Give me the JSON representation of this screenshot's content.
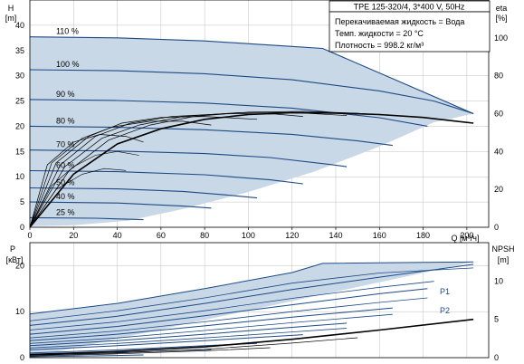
{
  "chart_data": [
    {
      "type": "line",
      "title": "TPE 125-320/4, 3*400 V, 50Hz",
      "info_lines": [
        "Перекачиваемая жидкость = Вода",
        "Темп. жидкости = 20 °C",
        "Плотность = 998.2 кг/м³"
      ],
      "y_label": "H",
      "y_unit": "[m]",
      "y2_label": "eta",
      "y2_unit": "[%]",
      "x_label": "Q [м³/ч]",
      "xlim": [
        0,
        210
      ],
      "ylim": [
        0,
        45
      ],
      "y2lim": [
        0,
        120
      ],
      "x_ticks": [
        0,
        20,
        40,
        60,
        80,
        100,
        120,
        140,
        160,
        180,
        200
      ],
      "y_ticks": [
        0,
        5,
        10,
        15,
        20,
        25,
        30,
        35,
        40
      ],
      "y2_ticks": [
        0,
        20,
        40,
        60,
        80,
        100
      ],
      "grid": true,
      "colors": {
        "curve": "#1c4a86",
        "envelope": "#c9d8e6",
        "efficiency": "#000000",
        "grid": "#bfbfbf"
      },
      "speed_curves": [
        {
          "label": "110 %",
          "points": [
            [
              0,
              37.7
            ],
            [
              40,
              37.5
            ],
            [
              80,
              36.9
            ],
            [
              120,
              35.8
            ],
            [
              134,
              35.4
            ],
            [
              203,
              22.5
            ]
          ]
        },
        {
          "label": "100 %",
          "points": [
            [
              0,
              31.2
            ],
            [
              40,
              31.0
            ],
            [
              80,
              30.4
            ],
            [
              120,
              29.2
            ],
            [
              160,
              27.0
            ],
            [
              185,
              25.0
            ],
            [
              203,
              22.5
            ]
          ]
        },
        {
          "label": "90 %",
          "points": [
            [
              0,
              25.3
            ],
            [
              40,
              25.1
            ],
            [
              80,
              24.6
            ],
            [
              120,
              23.6
            ],
            [
              160,
              21.7
            ],
            [
              182,
              20.0
            ]
          ]
        },
        {
          "label": "80 %",
          "points": [
            [
              0,
              20.0
            ],
            [
              40,
              19.8
            ],
            [
              80,
              19.3
            ],
            [
              120,
              18.4
            ],
            [
              150,
              17.1
            ],
            [
              166,
              16.2
            ]
          ]
        },
        {
          "label": "70 %",
          "points": [
            [
              0,
              15.3
            ],
            [
              40,
              15.1
            ],
            [
              80,
              14.6
            ],
            [
              110,
              13.8
            ],
            [
              138,
              12.4
            ],
            [
              145,
              12.0
            ]
          ]
        },
        {
          "label": "60 %",
          "points": [
            [
              0,
              11.2
            ],
            [
              40,
              11.0
            ],
            [
              80,
              10.4
            ],
            [
              110,
              9.4
            ],
            [
              125,
              8.6
            ]
          ]
        },
        {
          "label": "50 %",
          "points": [
            [
              0,
              7.8
            ],
            [
              40,
              7.6
            ],
            [
              70,
              7.1
            ],
            [
              90,
              6.4
            ],
            [
              104,
              5.8
            ]
          ]
        },
        {
          "label": "40 %",
          "points": [
            [
              0,
              5.0
            ],
            [
              40,
              4.8
            ],
            [
              70,
              4.2
            ],
            [
              83,
              3.8
            ]
          ]
        },
        {
          "label": "25 %",
          "points": [
            [
              0,
              1.9
            ],
            [
              30,
              1.8
            ],
            [
              52,
              1.5
            ]
          ]
        }
      ],
      "envelope": [
        [
          0,
          37.7
        ],
        [
          40,
          37.5
        ],
        [
          80,
          36.9
        ],
        [
          120,
          35.8
        ],
        [
          134,
          35.4
        ],
        [
          203,
          22.5
        ],
        [
          185,
          20.8
        ],
        [
          160,
          16.0
        ],
        [
          130,
          11.0
        ],
        [
          100,
          7.0
        ],
        [
          70,
          3.6
        ],
        [
          45,
          1.3
        ],
        [
          20,
          0.4
        ],
        [
          0,
          0.2
        ]
      ],
      "efficiency_curves": [
        {
          "points": [
            [
              0,
              0
            ],
            [
              20,
              28
            ],
            [
              40,
              44
            ],
            [
              60,
              52
            ],
            [
              80,
              57
            ],
            [
              100,
              59.5
            ],
            [
              120,
              60.5
            ],
            [
              140,
              60.3
            ],
            [
              160,
              59.5
            ],
            [
              180,
              58
            ],
            [
              203,
              55
            ]
          ],
          "width": 1.6
        },
        {
          "points": [
            [
              0,
              0
            ],
            [
              18,
              30
            ],
            [
              36,
              46
            ],
            [
              55,
              54
            ],
            [
              75,
              58.5
            ],
            [
              100,
              60.8
            ],
            [
              125,
              61.2
            ],
            [
              150,
              60.2
            ],
            [
              166,
              59
            ]
          ],
          "width": 0.7
        },
        {
          "points": [
            [
              0,
              0
            ],
            [
              16,
              32
            ],
            [
              33,
              47
            ],
            [
              50,
              54
            ],
            [
              70,
              58.5
            ],
            [
              95,
              60.5
            ],
            [
              120,
              60.6
            ],
            [
              145,
              59
            ]
          ],
          "width": 0.7
        },
        {
          "points": [
            [
              0,
              0
            ],
            [
              14,
              33
            ],
            [
              30,
              48
            ],
            [
              46,
              55
            ],
            [
              65,
              58.5
            ],
            [
              90,
              60
            ],
            [
              112,
              59.8
            ],
            [
              125,
              58.5
            ]
          ],
          "width": 0.7
        },
        {
          "points": [
            [
              0,
              0
            ],
            [
              12,
              34
            ],
            [
              27,
              48
            ],
            [
              42,
              55
            ],
            [
              60,
              58
            ],
            [
              80,
              58.5
            ],
            [
              104,
              57
            ]
          ],
          "width": 0.7
        },
        {
          "points": [
            [
              0,
              0
            ],
            [
              10,
              34
            ],
            [
              24,
              47
            ],
            [
              38,
              53
            ],
            [
              55,
              56
            ],
            [
              70,
              56
            ],
            [
              83,
              54
            ]
          ],
          "width": 0.7
        },
        {
          "points": [
            [
              0,
              0
            ],
            [
              8,
              33
            ],
            [
              20,
              45
            ],
            [
              32,
              49
            ],
            [
              44,
              48
            ],
            [
              52,
              45
            ]
          ],
          "width": 0.7
        },
        {
          "points": [
            [
              0,
              0
            ],
            [
              10,
              22
            ],
            [
              20,
              32
            ],
            [
              30,
              38
            ],
            [
              40,
              40
            ],
            [
              50,
              38
            ]
          ],
          "width": 0.6
        },
        {
          "points": [
            [
              0,
              0
            ],
            [
              12,
              20
            ],
            [
              24,
              28
            ],
            [
              34,
              31
            ],
            [
              44,
              30
            ]
          ],
          "width": 0.6
        }
      ]
    },
    {
      "type": "line",
      "y_label": "P",
      "y_unit": "[кВт]",
      "y2_label": "NPSH",
      "y2_unit": "[m]",
      "xlim": [
        0,
        210
      ],
      "ylim": [
        0,
        25
      ],
      "y2lim": [
        0,
        15
      ],
      "y_ticks": [
        0,
        10,
        20
      ],
      "y2_ticks": [
        0,
        5,
        10
      ],
      "grid": true,
      "line_labels": [
        "P1",
        "P2"
      ],
      "p1_curves": [
        {
          "points": [
            [
              0,
              9.5
            ],
            [
              40,
              11.8
            ],
            [
              80,
              15.0
            ],
            [
              120,
              18.5
            ],
            [
              134,
              20.5
            ],
            [
              203,
              20.8
            ]
          ]
        },
        {
          "points": [
            [
              0,
              7.0
            ],
            [
              40,
              9.0
            ],
            [
              80,
              11.8
            ],
            [
              120,
              14.8
            ],
            [
              160,
              17.5
            ],
            [
              203,
              20.3
            ]
          ]
        },
        {
          "points": [
            [
              0,
              5.1
            ],
            [
              40,
              6.8
            ],
            [
              80,
              9.1
            ],
            [
              120,
              11.5
            ],
            [
              160,
              13.9
            ],
            [
              182,
              15.0
            ]
          ]
        },
        {
          "points": [
            [
              0,
              3.7
            ],
            [
              40,
              5.1
            ],
            [
              80,
              6.9
            ],
            [
              120,
              8.8
            ],
            [
              166,
              10.8
            ]
          ]
        },
        {
          "points": [
            [
              0,
              2.6
            ],
            [
              40,
              3.7
            ],
            [
              80,
              5.1
            ],
            [
              120,
              6.6
            ],
            [
              145,
              7.5
            ]
          ]
        },
        {
          "points": [
            [
              0,
              1.7
            ],
            [
              40,
              2.6
            ],
            [
              80,
              3.7
            ],
            [
              125,
              5.0
            ]
          ]
        },
        {
          "points": [
            [
              0,
              1.0
            ],
            [
              40,
              1.7
            ],
            [
              80,
              2.6
            ],
            [
              104,
              3.1
            ]
          ]
        },
        {
          "points": [
            [
              0,
              0.6
            ],
            [
              40,
              1.1
            ],
            [
              83,
              1.8
            ]
          ]
        },
        {
          "points": [
            [
              0,
              0.2
            ],
            [
              30,
              0.4
            ],
            [
              52,
              0.6
            ]
          ]
        }
      ],
      "p2_curves": [
        {
          "points": [
            [
              0,
              8.0
            ],
            [
              40,
              10.2
            ],
            [
              80,
              13.0
            ],
            [
              120,
              16.2
            ],
            [
              160,
              18.4
            ],
            [
              203,
              19.5
            ]
          ]
        },
        {
          "points": [
            [
              0,
              6.0
            ],
            [
              40,
              7.8
            ],
            [
              80,
              10.2
            ],
            [
              120,
              12.9
            ],
            [
              160,
              15.3
            ],
            [
              185,
              16.6
            ]
          ]
        },
        {
          "points": [
            [
              0,
              4.3
            ],
            [
              40,
              5.8
            ],
            [
              80,
              7.8
            ],
            [
              120,
              10.0
            ],
            [
              160,
              12.0
            ],
            [
              182,
              13.0
            ]
          ]
        },
        {
          "points": [
            [
              0,
              3.1
            ],
            [
              40,
              4.3
            ],
            [
              80,
              5.9
            ],
            [
              120,
              7.6
            ],
            [
              166,
              9.4
            ]
          ]
        },
        {
          "points": [
            [
              0,
              2.1
            ],
            [
              40,
              3.1
            ],
            [
              80,
              4.3
            ],
            [
              120,
              5.6
            ],
            [
              145,
              6.4
            ]
          ]
        }
      ],
      "npsh_curves": [
        {
          "points": [
            [
              0,
              0.4
            ],
            [
              40,
              0.8
            ],
            [
              80,
              1.4
            ],
            [
              120,
              2.4
            ],
            [
              160,
              3.6
            ],
            [
              203,
              5.0
            ]
          ],
          "width": 1.6
        },
        {
          "points": [
            [
              0,
              0.3
            ],
            [
              40,
              0.6
            ],
            [
              80,
              1.1
            ],
            [
              120,
              1.9
            ],
            [
              150,
              2.6
            ]
          ],
          "width": 0.7
        },
        {
          "points": [
            [
              0,
              0.2
            ],
            [
              40,
              0.5
            ],
            [
              80,
              0.9
            ],
            [
              110,
              1.3
            ]
          ],
          "width": 0.7
        }
      ]
    }
  ]
}
